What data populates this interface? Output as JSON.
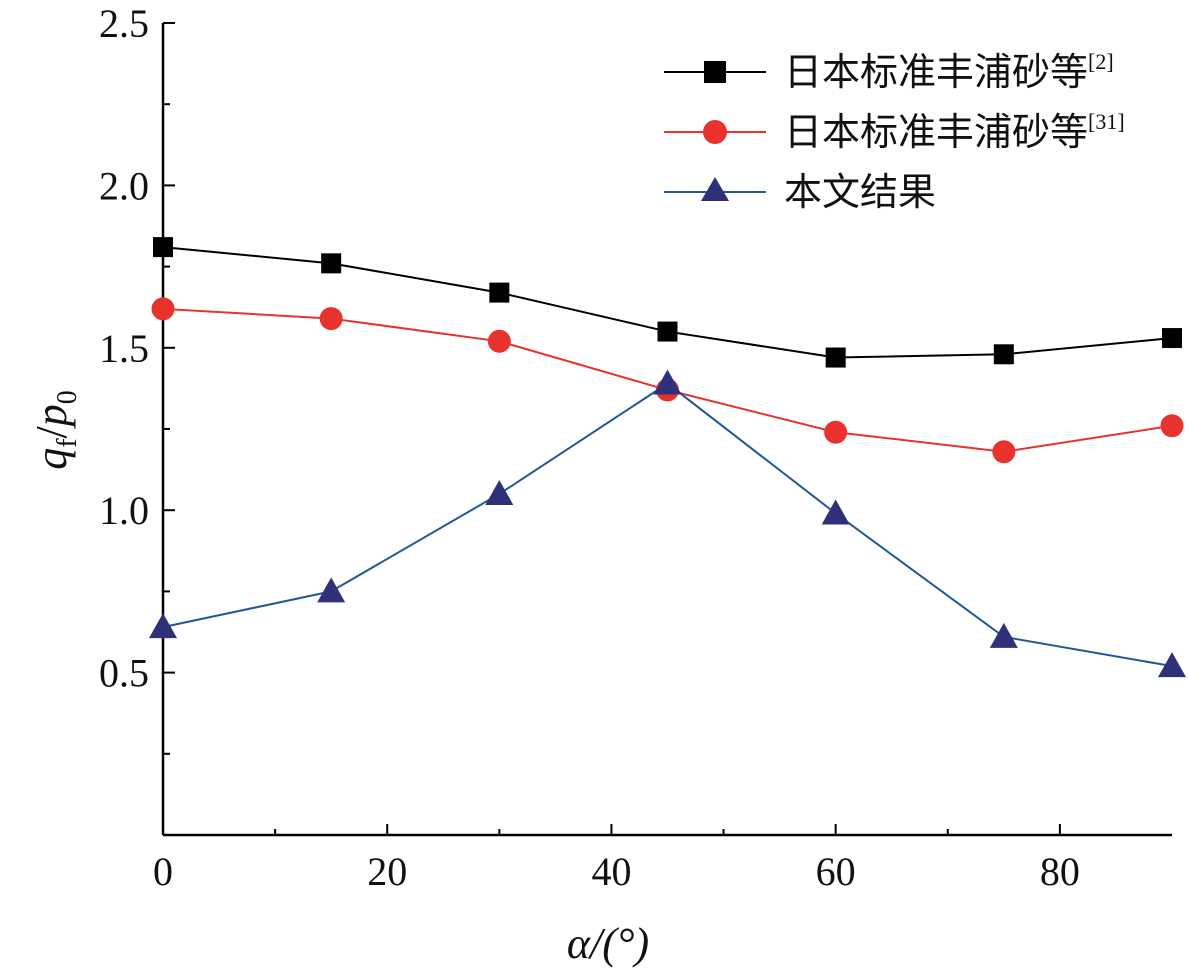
{
  "chart_data": {
    "type": "line",
    "x": [
      0,
      15,
      30,
      45,
      60,
      75,
      90
    ],
    "xlim": [
      0,
      90
    ],
    "ylim": [
      0,
      2.5
    ],
    "xticks": [
      0,
      20,
      40,
      60,
      80
    ],
    "xminor": [
      10,
      30,
      50,
      70
    ],
    "yticks": [
      0.5,
      1.0,
      1.5,
      2.0,
      2.5
    ],
    "ytick_labels": [
      "0.5",
      "1.0",
      "1.5",
      "2.0",
      "2.5"
    ],
    "yminor": [
      0.25,
      0.75,
      1.25,
      1.75,
      2.25
    ],
    "xlabel": "α/(°)",
    "ylabel": {
      "q": "q",
      "f": "f",
      "slash": "/",
      "p": "p",
      "zero": "0"
    },
    "legend_position": "top-right",
    "grid": false,
    "series": [
      {
        "name": "日本标准丰浦砂等",
        "ref": "[2]",
        "marker": "square",
        "color": "#000000",
        "values": [
          1.81,
          1.76,
          1.67,
          1.55,
          1.47,
          1.48,
          1.53
        ]
      },
      {
        "name": "日本标准丰浦砂等",
        "ref": "[31]",
        "marker": "circle",
        "color": "#e8322e",
        "values": [
          1.62,
          1.59,
          1.52,
          1.37,
          1.24,
          1.18,
          1.26
        ]
      },
      {
        "name": "本文结果",
        "ref": "",
        "marker": "triangle",
        "color": "#1f5a96",
        "fill": "#2e3178",
        "values": [
          0.64,
          0.75,
          1.05,
          1.39,
          0.99,
          0.61,
          0.52
        ]
      }
    ]
  }
}
